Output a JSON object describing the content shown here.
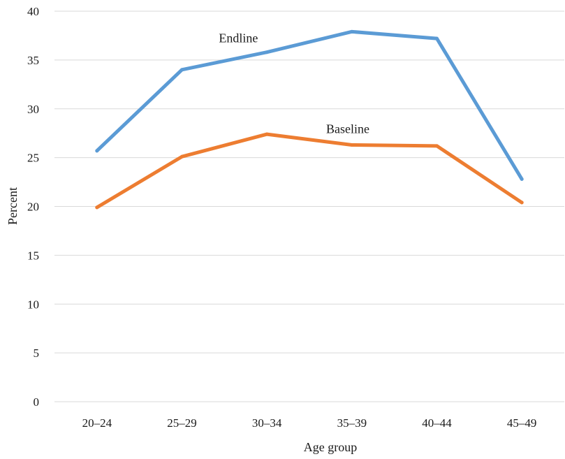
{
  "chart_data": {
    "type": "line",
    "categories": [
      "20–24",
      "25–29",
      "30–34",
      "35–39",
      "40–44",
      "45–49"
    ],
    "series": [
      {
        "name": "Endline",
        "values": [
          25.7,
          34.0,
          35.8,
          37.9,
          37.2,
          22.8
        ],
        "color": "#5b9bd5"
      },
      {
        "name": "Baseline",
        "values": [
          19.9,
          25.1,
          27.4,
          26.3,
          26.2,
          20.4
        ],
        "color": "#ed7d31"
      }
    ],
    "yticks": [
      0,
      5,
      10,
      15,
      20,
      25,
      30,
      35,
      40
    ],
    "ylim": [
      0,
      40
    ],
    "xlabel": "Age group",
    "ylabel": "Percent",
    "grid": true,
    "legend": "inline labels"
  }
}
